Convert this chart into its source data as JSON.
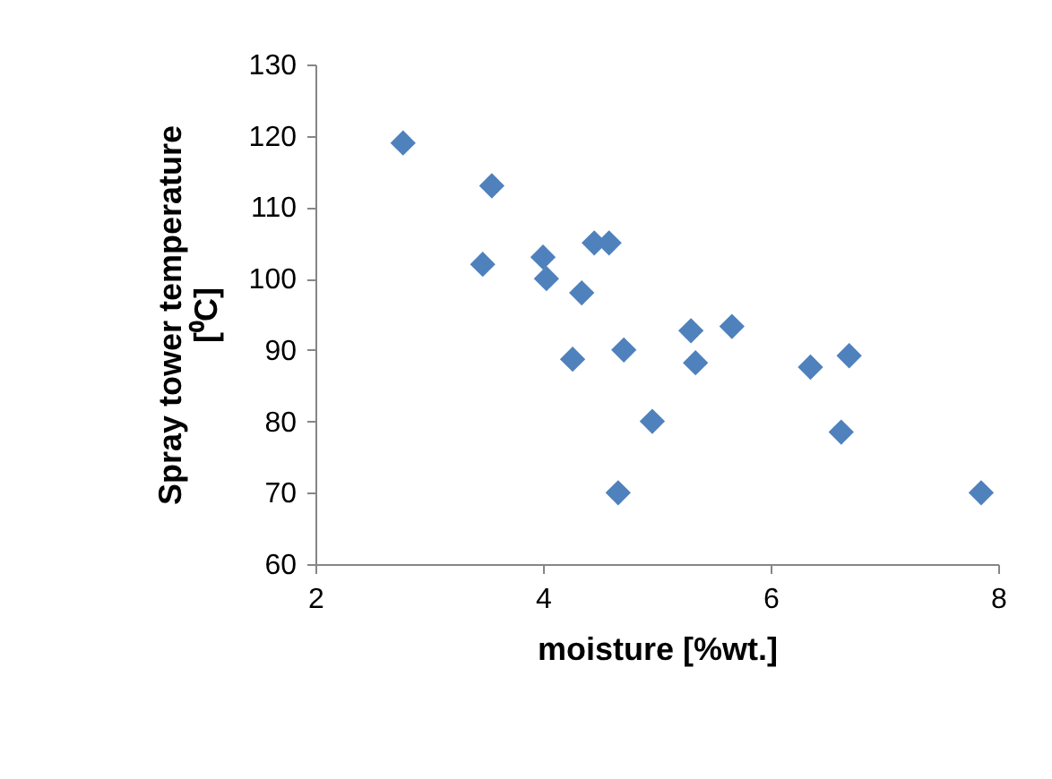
{
  "chart_data": {
    "type": "scatter",
    "xlabel": "moisture [%wt.]",
    "ylabel": "Spray tower temperature\n[⁰C]",
    "x": [
      2.77,
      3.55,
      3.47,
      4.0,
      4.03,
      4.45,
      4.58,
      4.34,
      4.26,
      4.71,
      4.96,
      4.66,
      5.3,
      5.66,
      5.34,
      6.35,
      6.69,
      6.62,
      7.85
    ],
    "series": [
      {
        "color": "#4f81bd",
        "values": [
          119,
          113,
          102,
          103,
          100,
          105,
          105,
          98,
          88.7,
          90,
          80,
          70,
          92.7,
          93.3,
          88.2,
          87.6,
          89.2,
          78.5,
          70
        ]
      }
    ],
    "xlim": [
      2,
      8
    ],
    "xticks": [
      2,
      4,
      6,
      8
    ],
    "ylim": [
      60,
      130
    ],
    "yticks": [
      60,
      70,
      80,
      90,
      100,
      110,
      120,
      130
    ],
    "grid": false,
    "marker": "diamond"
  }
}
